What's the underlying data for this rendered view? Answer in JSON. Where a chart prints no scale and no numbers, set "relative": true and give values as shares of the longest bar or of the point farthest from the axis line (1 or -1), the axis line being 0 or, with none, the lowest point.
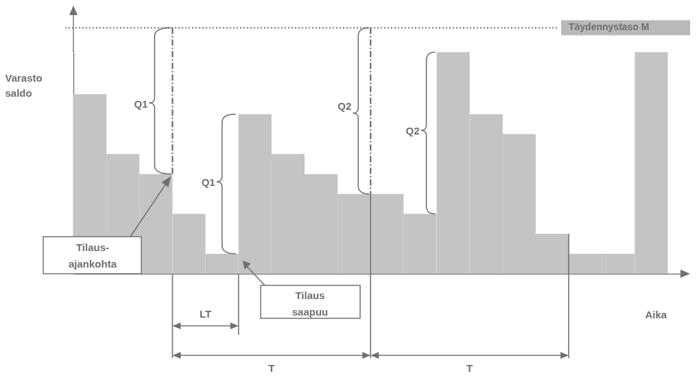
{
  "chart_data": {
    "type": "bar",
    "relative": true,
    "xlabel": "Aika",
    "ylabel": "Varasto saldo",
    "color": "#c4c4c4",
    "categories": [
      null,
      null,
      null,
      null,
      null,
      null,
      null,
      null,
      null,
      null,
      null,
      null,
      null,
      null,
      null,
      null,
      null,
      null
    ],
    "values": [
      0.81,
      0.54,
      0.45,
      0.27,
      0.09,
      0.72,
      0.54,
      0.45,
      0.36,
      0.36,
      0.27,
      1,
      0.72,
      0.63,
      0.18,
      0.09,
      0.09,
      1
    ],
    "ref_lines": [
      {
        "axis": "y",
        "value": 1.11,
        "label": "Täydennystaso M",
        "line_style": "dotted"
      }
    ],
    "annotations": [
      "Q1",
      "Q1",
      "Q2",
      "Q2",
      "Tilaus-ajankohta",
      "Tilaus saapuu",
      "LT",
      "T",
      "T"
    ]
  }
}
